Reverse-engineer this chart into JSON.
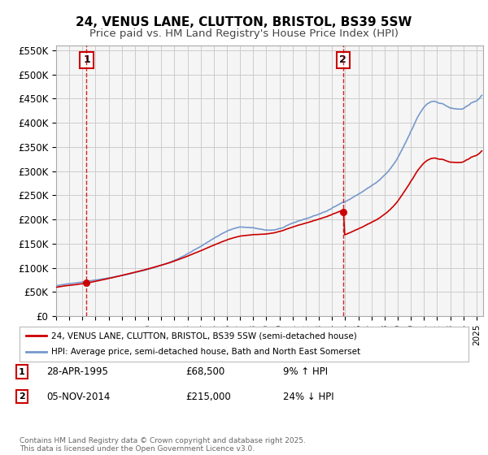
{
  "title": "24, VENUS LANE, CLUTTON, BRISTOL, BS39 5SW",
  "subtitle": "Price paid vs. HM Land Registry's House Price Index (HPI)",
  "ylim": [
    0,
    560000
  ],
  "yticks": [
    0,
    50000,
    100000,
    150000,
    200000,
    250000,
    300000,
    350000,
    400000,
    450000,
    500000,
    550000
  ],
  "ytick_labels": [
    "£0",
    "£50K",
    "£100K",
    "£150K",
    "£200K",
    "£250K",
    "£300K",
    "£350K",
    "£400K",
    "£450K",
    "£500K",
    "£550K"
  ],
  "xlim_start": 1993.0,
  "xlim_end": 2025.5,
  "xticks": [
    1993,
    1994,
    1995,
    1996,
    1997,
    1998,
    1999,
    2000,
    2001,
    2002,
    2003,
    2004,
    2005,
    2006,
    2007,
    2008,
    2009,
    2010,
    2011,
    2012,
    2013,
    2014,
    2015,
    2016,
    2017,
    2018,
    2019,
    2020,
    2021,
    2022,
    2023,
    2024,
    2025
  ],
  "sale1_date": 1995.32,
  "sale1_price": 68500,
  "sale1_label": "1",
  "sale2_date": 2014.84,
  "sale2_price": 215000,
  "sale2_label": "2",
  "property_line_color": "#cc0000",
  "hpi_line_color": "#7799cc",
  "vline_color": "#cc0000",
  "grid_color": "#cccccc",
  "bg_color": "#f5f5f5",
  "legend1": "24, VENUS LANE, CLUTTON, BRISTOL, BS39 5SW (semi-detached house)",
  "legend2": "HPI: Average price, semi-detached house, Bath and North East Somerset",
  "annotation1_date": "28-APR-1995",
  "annotation1_price": "£68,500",
  "annotation1_change": "9% ↑ HPI",
  "annotation2_date": "05-NOV-2014",
  "annotation2_price": "£215,000",
  "annotation2_change": "24% ↓ HPI",
  "footer": "Contains HM Land Registry data © Crown copyright and database right 2025.\nThis data is licensed under the Open Government Licence v3.0.",
  "title_fontsize": 11,
  "subtitle_fontsize": 9.5
}
